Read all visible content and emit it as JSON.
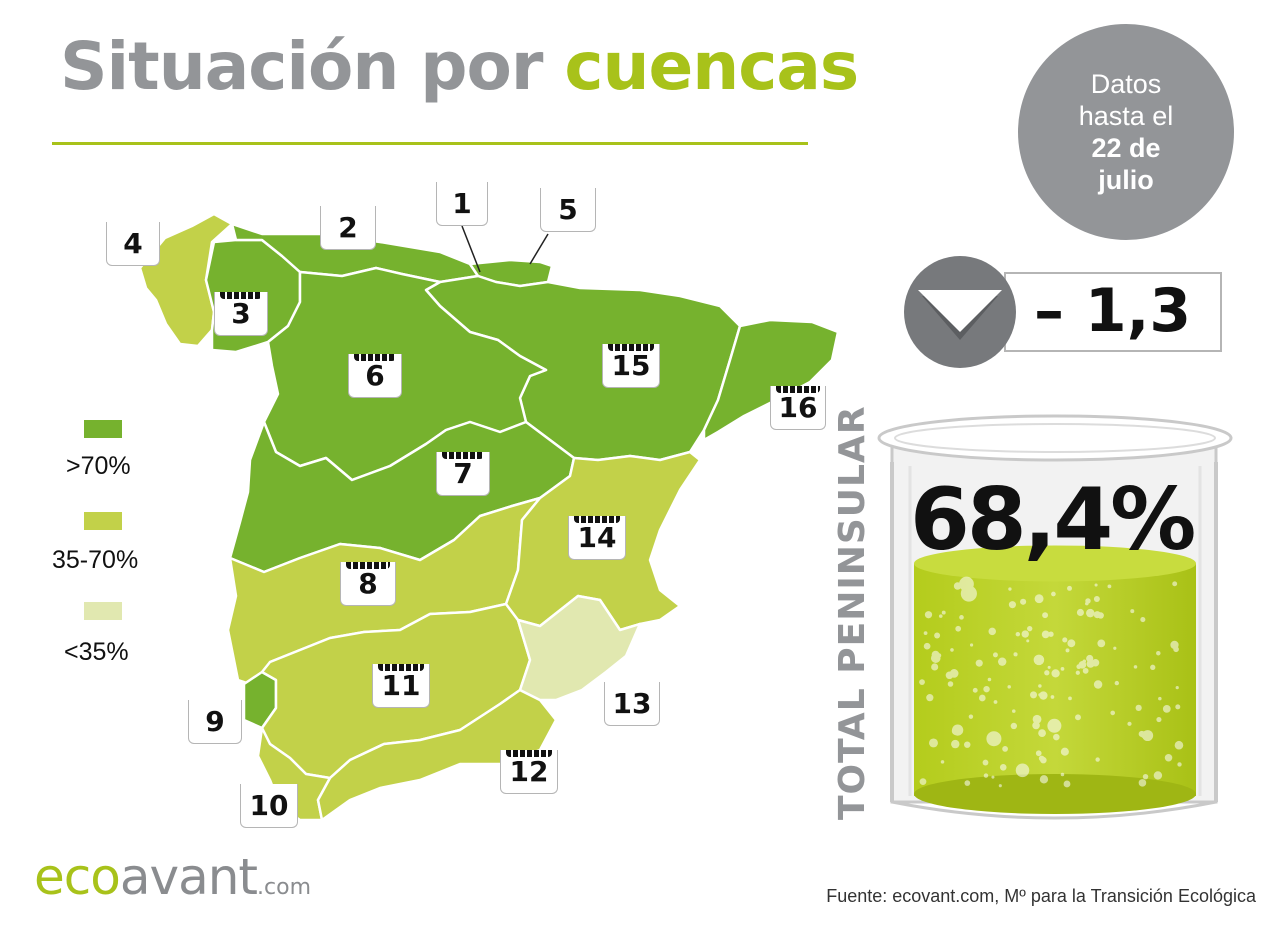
{
  "title": {
    "part1": "Situación por",
    "part2": "cuencas"
  },
  "date_badge": {
    "line1": "Datos",
    "line2": "hasta el",
    "line3": "22 de",
    "line4": "julio"
  },
  "colors": {
    "high": "#76b22e",
    "mid": "#c2d149",
    "low": "#e1e8b0",
    "brand_green": "#a8c21a",
    "brand_grey": "#939598"
  },
  "legend": [
    {
      "label": ">70%",
      "color": "#76b22e"
    },
    {
      "label": "35-70%",
      "color": "#c2d149"
    },
    {
      "label": "<35%",
      "color": "#e1e8b0"
    }
  ],
  "basins": [
    {
      "number": "1",
      "category": ">70%"
    },
    {
      "number": "2",
      "category": ">70%"
    },
    {
      "number": "3",
      "category": ">70%"
    },
    {
      "number": "4",
      "category": "35-70%"
    },
    {
      "number": "5",
      "category": ">70%"
    },
    {
      "number": "6",
      "category": ">70%"
    },
    {
      "number": "7",
      "category": ">70%"
    },
    {
      "number": "8",
      "category": "35-70%"
    },
    {
      "number": "9",
      "category": ">70%"
    },
    {
      "number": "10",
      "category": "35-70%"
    },
    {
      "number": "11",
      "category": "35-70%"
    },
    {
      "number": "12",
      "category": "35-70%"
    },
    {
      "number": "13",
      "category": "<35%"
    },
    {
      "number": "14",
      "category": "35-70%"
    },
    {
      "number": "15",
      "category": ">70%"
    },
    {
      "number": "16",
      "category": ">70%"
    }
  ],
  "variation": {
    "value": "– 1,3",
    "direction": "down",
    "icon": "down-triangle-icon"
  },
  "total": {
    "label": "TOTAL PENINSULAR",
    "value": "68,4%",
    "fill_fraction": 0.684
  },
  "logo": {
    "eco": "eco",
    "avant": "avant",
    "com": ".com"
  },
  "source": "Fuente: ecovant.com, Mº para la Transición Ecológica"
}
